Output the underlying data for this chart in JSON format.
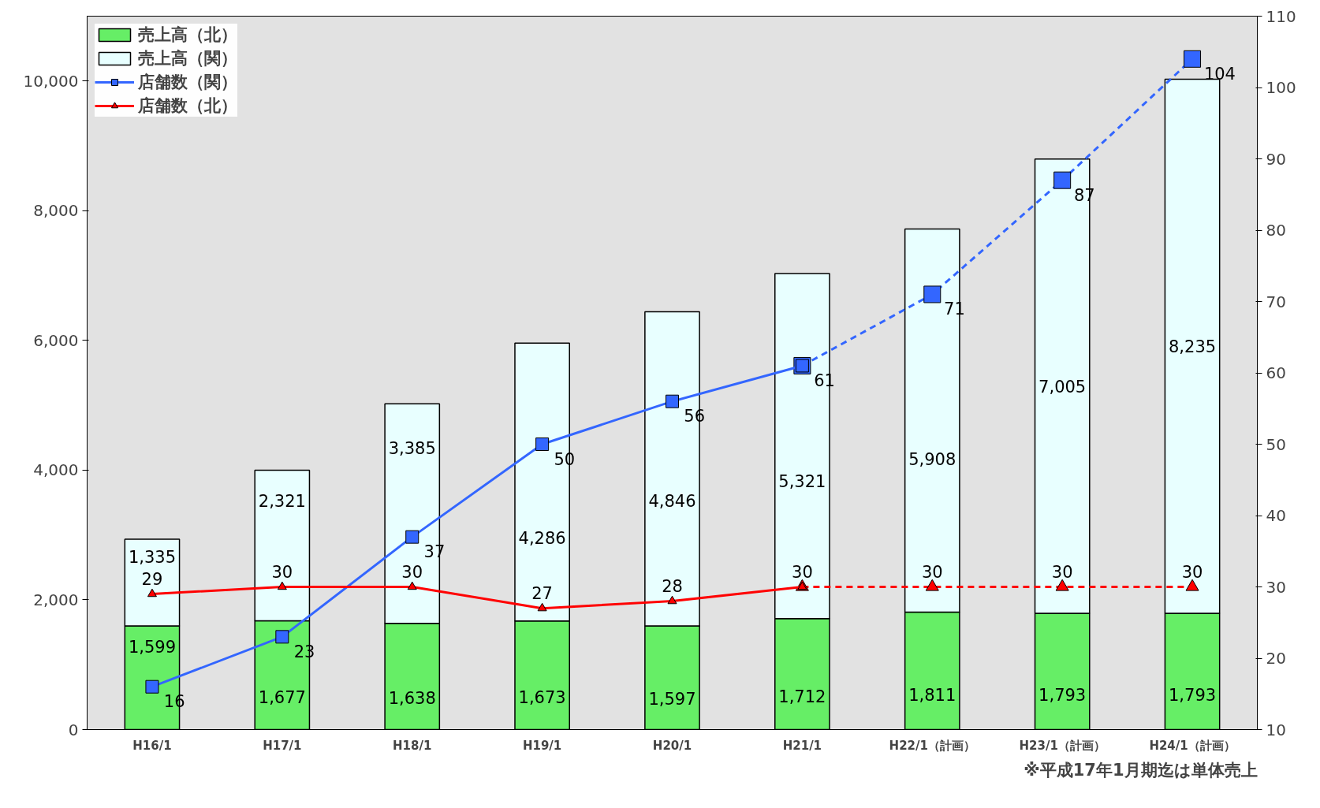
{
  "chart_data": {
    "type": "bar",
    "stacked": true,
    "categories": [
      "H16/1",
      "H17/1",
      "H18/1",
      "H19/1",
      "H20/1",
      "H21/1",
      "H22/1（計画）",
      "H23/1（計画）",
      "H24/1（計画）"
    ],
    "series": [
      {
        "name": "売上高（北）",
        "color": "#66ee66",
        "values": [
          1599,
          1677,
          1638,
          1673,
          1597,
          1712,
          1811,
          1793,
          1793
        ],
        "value_labels": [
          "1,599",
          "1,677",
          "1,638",
          "1,673",
          "1,597",
          "1,712",
          "1,811",
          "1,793",
          "1,793"
        ]
      },
      {
        "name": "売上高（関）",
        "color": "#e8ffff",
        "values": [
          1335,
          2321,
          3385,
          4286,
          4846,
          5321,
          5908,
          7005,
          8235
        ],
        "value_labels": [
          "1,335",
          "2,321",
          "3,385",
          "4,286",
          "4,846",
          "5,321",
          "5,908",
          "7,005",
          "8,235"
        ]
      },
      {
        "name": "店舗数（関）",
        "type": "line",
        "axis": "y2",
        "color": "#3366ff",
        "marker": "square",
        "line_style": "solid",
        "values": [
          16,
          23,
          37,
          50,
          56,
          61,
          null,
          null,
          null
        ],
        "value_labels": [
          "16",
          "23",
          "37",
          "50",
          "56",
          "61",
          null,
          null,
          null
        ]
      },
      {
        "type": "line",
        "axis": "y2",
        "color": "#3366ff",
        "marker": "square",
        "line_style": "dashed",
        "values": [
          null,
          null,
          null,
          null,
          null,
          61,
          71,
          87,
          104
        ],
        "value_labels": [
          null,
          null,
          null,
          null,
          null,
          null,
          "71",
          "87",
          "104"
        ]
      },
      {
        "name": "店舗数（北）",
        "type": "line",
        "axis": "y2",
        "color": "#ff0000",
        "marker": "triangle",
        "line_style": "solid",
        "values": [
          29,
          30,
          30,
          27,
          28,
          30,
          null,
          null,
          null
        ],
        "value_labels": [
          "29",
          "30",
          "30",
          "27",
          "28",
          "30",
          null,
          null,
          null
        ]
      },
      {
        "type": "line",
        "axis": "y2",
        "color": "#ff0000",
        "marker": "triangle",
        "line_style": "dashed",
        "values": [
          null,
          null,
          null,
          null,
          null,
          30,
          30,
          30,
          30
        ],
        "value_labels": [
          null,
          null,
          null,
          null,
          null,
          null,
          "30",
          "30",
          "30"
        ]
      }
    ],
    "ylim": [
      0,
      11000
    ],
    "yticks": [
      {
        "value": 0,
        "label": "0"
      },
      {
        "value": 2000,
        "label": "2,000"
      },
      {
        "value": 4000,
        "label": "4,000"
      },
      {
        "value": 6000,
        "label": "6,000"
      },
      {
        "value": 8000,
        "label": "8,000"
      },
      {
        "value": 10000,
        "label": "10,000"
      }
    ],
    "y2lim": [
      10,
      110
    ],
    "y2ticks": [
      10,
      20,
      30,
      40,
      50,
      60,
      70,
      80,
      90,
      100,
      110
    ],
    "data_labels": true,
    "grid": false,
    "legend": "top left",
    "annotations": [
      "※平成17年1月期迄は単体売上"
    ]
  }
}
